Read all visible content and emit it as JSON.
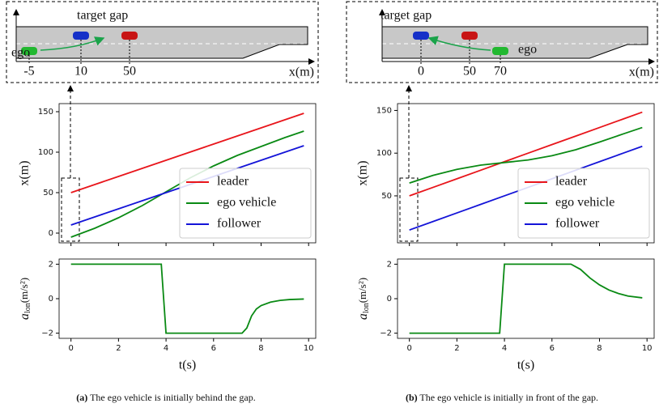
{
  "chart_data": [
    {
      "type": "line",
      "ylabel": "x(m)",
      "x": [
        0,
        1,
        2,
        3,
        4,
        5,
        6,
        7,
        8,
        9,
        9.8
      ],
      "series": [
        {
          "name": "leader",
          "color": "#e8151b",
          "values": [
            50,
            60,
            70,
            80,
            90,
            100,
            110,
            120,
            130,
            140,
            148
          ]
        },
        {
          "name": "ego vehicle",
          "color": "#0a8a14",
          "values": [
            -5,
            6,
            19,
            34,
            51,
            68,
            83,
            96,
            107,
            118,
            126
          ]
        },
        {
          "name": "follower",
          "color": "#1414d8",
          "values": [
            10,
            20,
            30,
            40,
            50,
            60,
            70,
            80,
            90,
            100,
            108
          ]
        }
      ],
      "xlim": [
        -0.5,
        10.3
      ],
      "ylim": [
        -12,
        160
      ],
      "xticks": [
        0,
        2,
        4,
        6,
        8,
        10
      ],
      "yticks": [
        0,
        50,
        100,
        150
      ],
      "legend": "lower right"
    },
    {
      "type": "line",
      "xlabel": "t(s)",
      "ylabel": "a",
      "ylabel_sub": "lon",
      "ylabel_unit": "(m/s²)",
      "x": [
        0,
        3.8,
        4.0,
        7.2,
        7.4,
        7.6,
        7.8,
        8.0,
        8.4,
        8.8,
        9.2,
        9.8
      ],
      "series": [
        {
          "color": "#0a8a14",
          "values": [
            2,
            2,
            -2,
            -2,
            -1.7,
            -1.0,
            -0.6,
            -0.4,
            -0.2,
            -0.1,
            -0.05,
            -0.02
          ]
        }
      ],
      "xlim": [
        -0.5,
        10.3
      ],
      "ylim": [
        -2.3,
        2.3
      ],
      "xticks": [
        0,
        2,
        4,
        6,
        8,
        10
      ],
      "yticks": [
        {
          "value": -2,
          "label": "−2"
        },
        0,
        2
      ]
    },
    {
      "type": "line",
      "ylabel": "x(m)",
      "x": [
        0,
        1,
        2,
        3,
        4,
        5,
        6,
        7,
        8,
        9,
        9.8
      ],
      "series": [
        {
          "name": "leader",
          "color": "#e8151b",
          "values": [
            50,
            60,
            70,
            80,
            90,
            100,
            110,
            120,
            130,
            140,
            148
          ]
        },
        {
          "name": "ego vehicle",
          "color": "#0a8a14",
          "values": [
            65,
            74,
            81,
            86,
            89,
            92,
            97,
            104,
            113,
            122.5,
            130
          ]
        },
        {
          "name": "follower",
          "color": "#1414d8",
          "values": [
            10,
            20,
            30,
            40,
            50,
            60,
            70,
            80,
            90,
            100,
            108
          ]
        }
      ],
      "xlim": [
        -0.5,
        10.3
      ],
      "ylim": [
        -5,
        158
      ],
      "xticks": [
        0,
        2,
        4,
        6,
        8,
        10
      ],
      "yticks": [
        50,
        100,
        150
      ],
      "legend": "lower right"
    },
    {
      "type": "line",
      "xlabel": "t(s)",
      "ylabel": "a",
      "ylabel_sub": "lon",
      "ylabel_unit": "(m/s²)",
      "x": [
        0,
        3.8,
        4.0,
        6.8,
        7.2,
        7.6,
        8.0,
        8.4,
        8.8,
        9.2,
        9.8
      ],
      "series": [
        {
          "color": "#0a8a14",
          "values": [
            -2,
            -2,
            2,
            2,
            1.7,
            1.2,
            0.8,
            0.5,
            0.3,
            0.15,
            0.05
          ]
        }
      ],
      "xlim": [
        -0.5,
        10.3
      ],
      "ylim": [
        -2.3,
        2.3
      ],
      "xticks": [
        0,
        2,
        4,
        6,
        8,
        10
      ],
      "yticks": [
        {
          "value": -2,
          "label": "−2"
        },
        0,
        2
      ]
    }
  ],
  "diagrams": [
    {
      "gap_label": "target gap",
      "ego_label": "ego",
      "positions": [
        "-5",
        "10",
        "50"
      ],
      "axis_label": "x(m)"
    },
    {
      "gap_label": "target gap",
      "ego_label": "ego",
      "positions": [
        "0",
        "50",
        "70"
      ],
      "axis_label": "x(m)"
    }
  ],
  "captions": [
    {
      "tag": "(a)",
      "text": "The ego vehicle is initially behind the gap."
    },
    {
      "tag": "(b)",
      "text": "The ego vehicle is initially in front of the gap."
    }
  ]
}
